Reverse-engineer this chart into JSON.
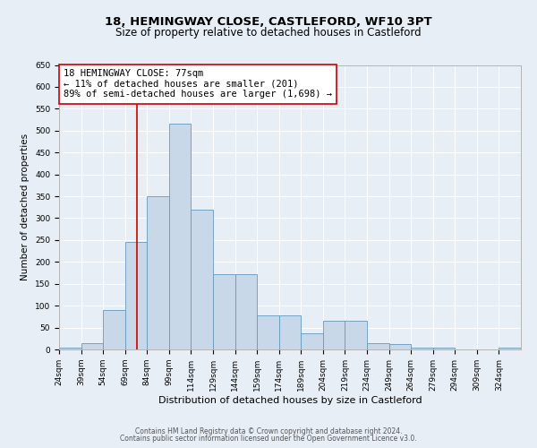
{
  "title": "18, HEMINGWAY CLOSE, CASTLEFORD, WF10 3PT",
  "subtitle": "Size of property relative to detached houses in Castleford",
  "xlabel": "Distribution of detached houses by size in Castleford",
  "ylabel": "Number of detached properties",
  "bin_labels": [
    "24sqm",
    "39sqm",
    "54sqm",
    "69sqm",
    "84sqm",
    "99sqm",
    "114sqm",
    "129sqm",
    "144sqm",
    "159sqm",
    "174sqm",
    "189sqm",
    "204sqm",
    "219sqm",
    "234sqm",
    "249sqm",
    "264sqm",
    "279sqm",
    "294sqm",
    "309sqm",
    "324sqm"
  ],
  "bar_values": [
    5,
    15,
    90,
    245,
    350,
    515,
    320,
    172,
    172,
    78,
    78,
    37,
    65,
    65,
    15,
    12,
    5,
    5,
    0,
    0,
    5
  ],
  "bin_edges": [
    24,
    39,
    54,
    69,
    84,
    99,
    114,
    129,
    144,
    159,
    174,
    189,
    204,
    219,
    234,
    249,
    264,
    279,
    294,
    309,
    324,
    339
  ],
  "bar_color": "#c8d8e8",
  "bar_edge_color": "#6699bb",
  "vline_x": 77,
  "vline_color": "#cc0000",
  "ylim": [
    0,
    650
  ],
  "yticks": [
    0,
    50,
    100,
    150,
    200,
    250,
    300,
    350,
    400,
    450,
    500,
    550,
    600,
    650
  ],
  "annotation_text": "18 HEMINGWAY CLOSE: 77sqm\n← 11% of detached houses are smaller (201)\n89% of semi-detached houses are larger (1,698) →",
  "annotation_box_color": "#ffffff",
  "annotation_box_edge": "#cc0000",
  "bg_color": "#e8eef5",
  "footer1": "Contains HM Land Registry data © Crown copyright and database right 2024.",
  "footer2": "Contains public sector information licensed under the Open Government Licence v3.0.",
  "title_fontsize": 9.5,
  "subtitle_fontsize": 8.5,
  "xlabel_fontsize": 8,
  "ylabel_fontsize": 7.5,
  "tick_fontsize": 6.5,
  "ann_fontsize": 7.5,
  "footer_fontsize": 5.5
}
